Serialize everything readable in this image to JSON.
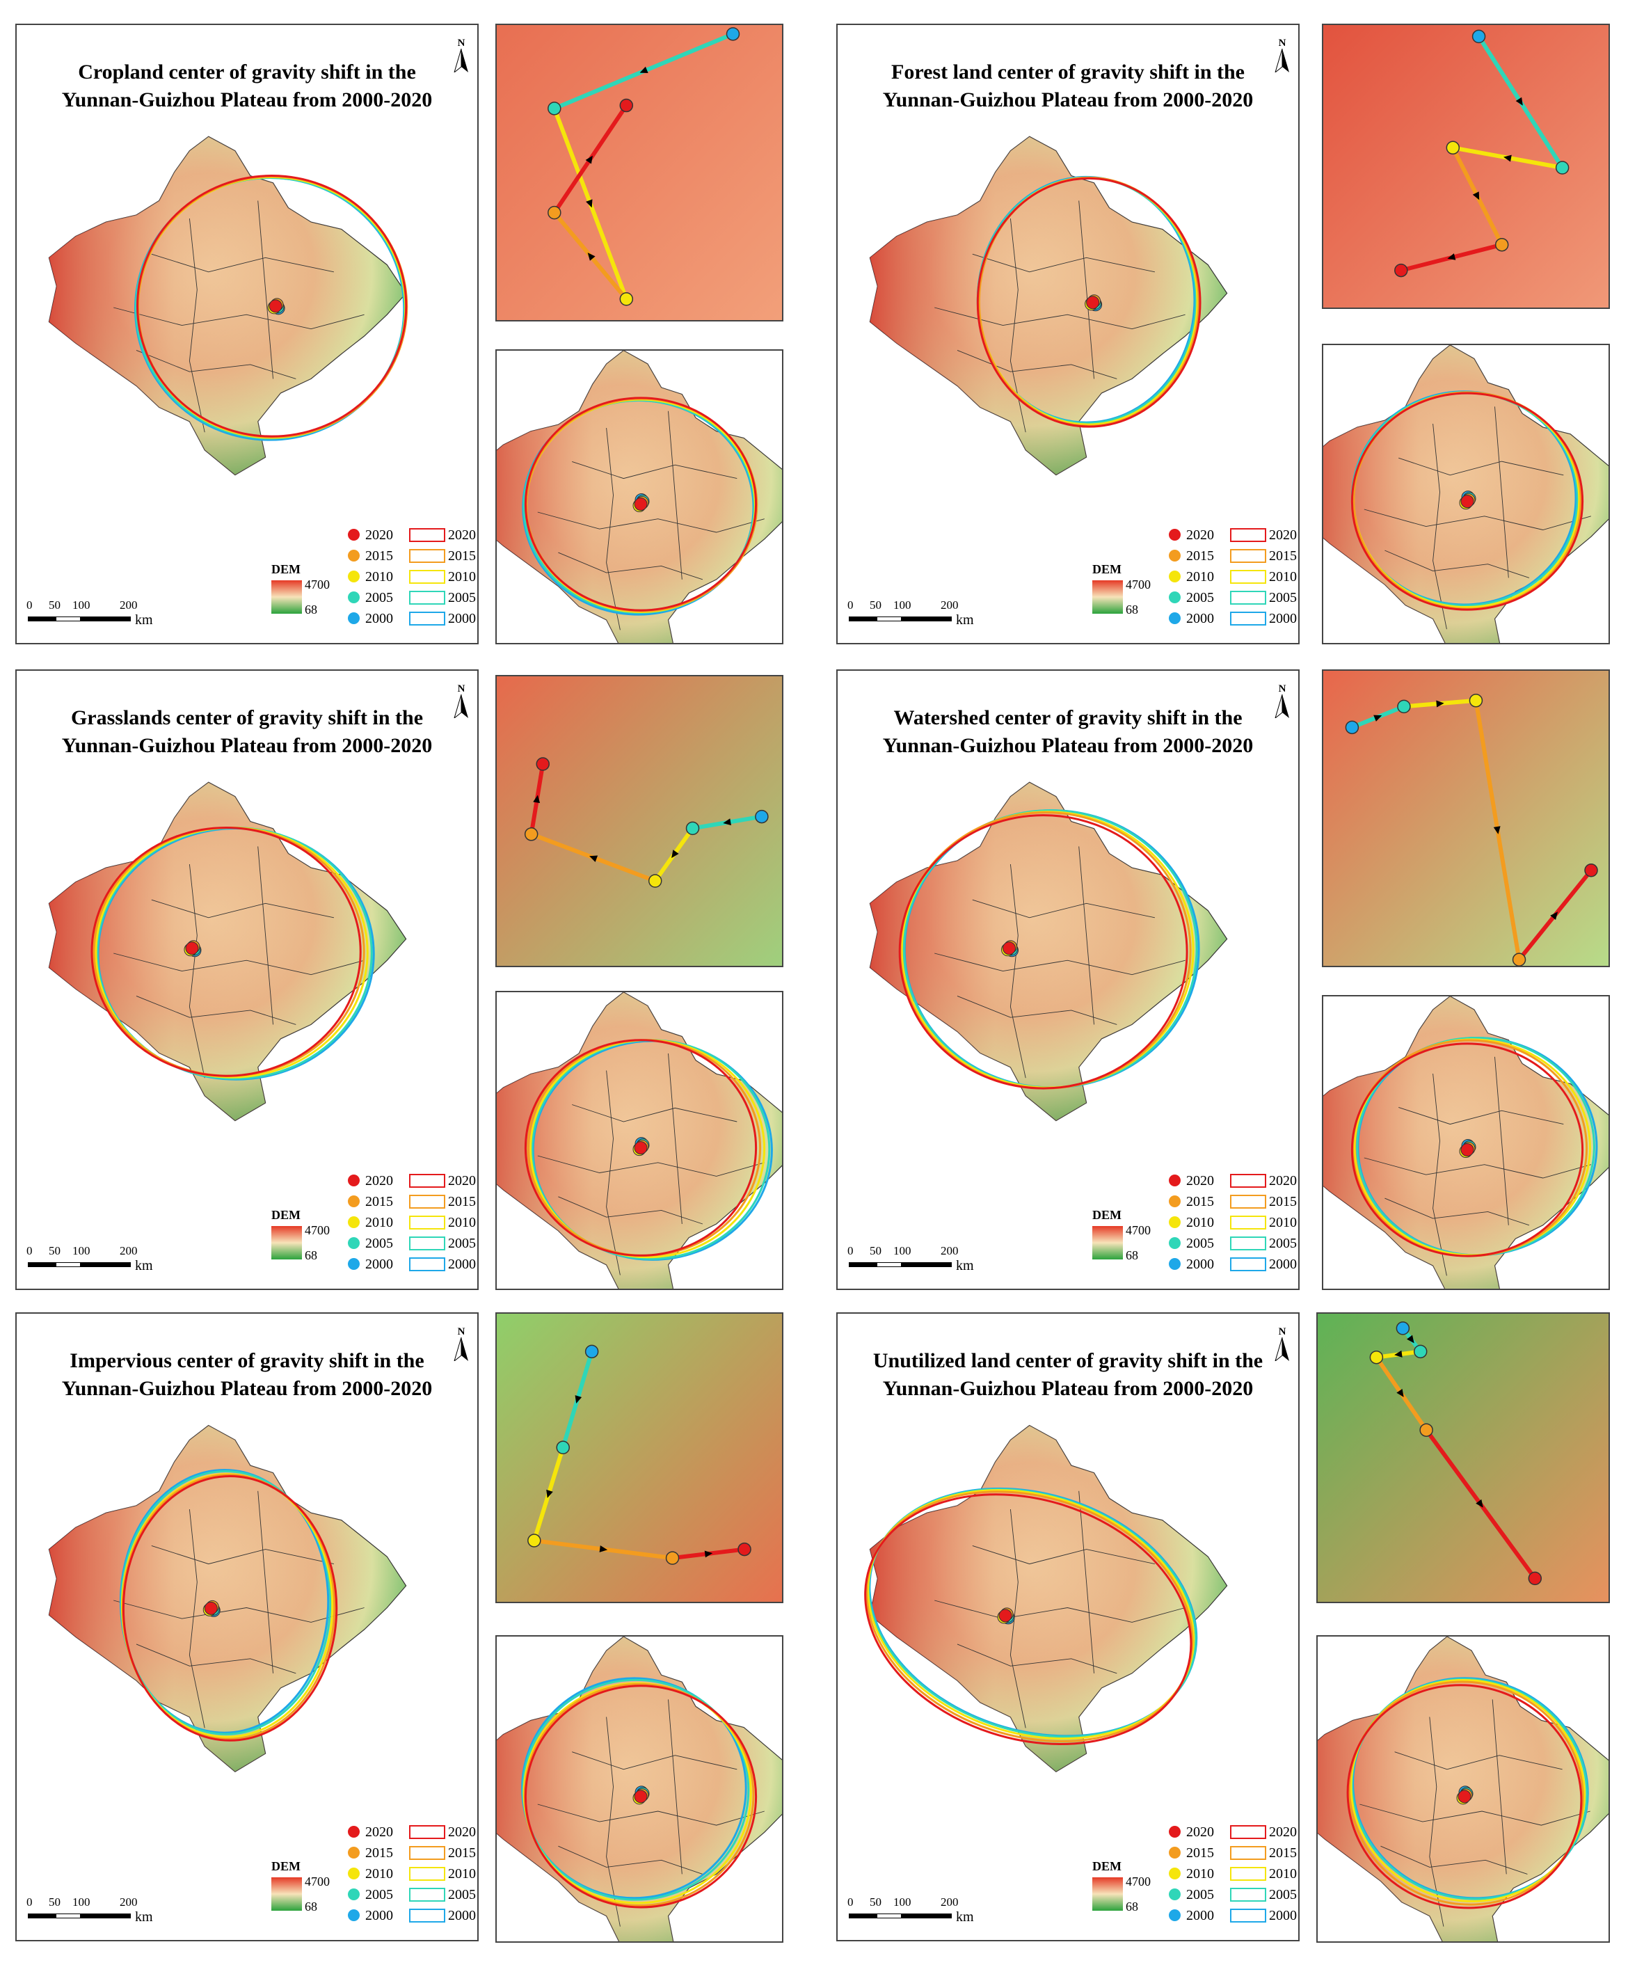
{
  "panels": [
    {
      "title1": "Cropland center of gravity shift in the",
      "title2": "Yunnan-Guizhou Plateau from 2000-2020"
    },
    {
      "title1": "Forest land center of gravity shift in the",
      "title2": "Yunnan-Guizhou Plateau from 2000-2020"
    },
    {
      "title1": "Grasslands center of gravity shift in the",
      "title2": "Yunnan-Guizhou Plateau from 2000-2020"
    },
    {
      "title1": "Watershed center of gravity shift in the",
      "title2": "Yunnan-Guizhou Plateau from 2000-2020"
    },
    {
      "title1": "Impervious center of gravity shift in the",
      "title2": "Yunnan-Guizhou Plateau from 2000-2020"
    },
    {
      "title1": "Unutilized land center of gravity shift in the",
      "title2": "Yunnan-Guizhou Plateau from 2000-2020"
    }
  ],
  "legend": {
    "years": [
      "2020",
      "2015",
      "2010",
      "2005",
      "2000"
    ],
    "colors": [
      "#e41a1c",
      "#f39c1f",
      "#f5e50b",
      "#2fd6b8",
      "#1ea8e8"
    ],
    "dem_label": "DEM",
    "dem_max": "4700",
    "dem_min": "68"
  },
  "scale": {
    "t0": "0",
    "t1": "50",
    "t2": "100",
    "t3": "200",
    "unit": "km"
  },
  "north": "N"
}
